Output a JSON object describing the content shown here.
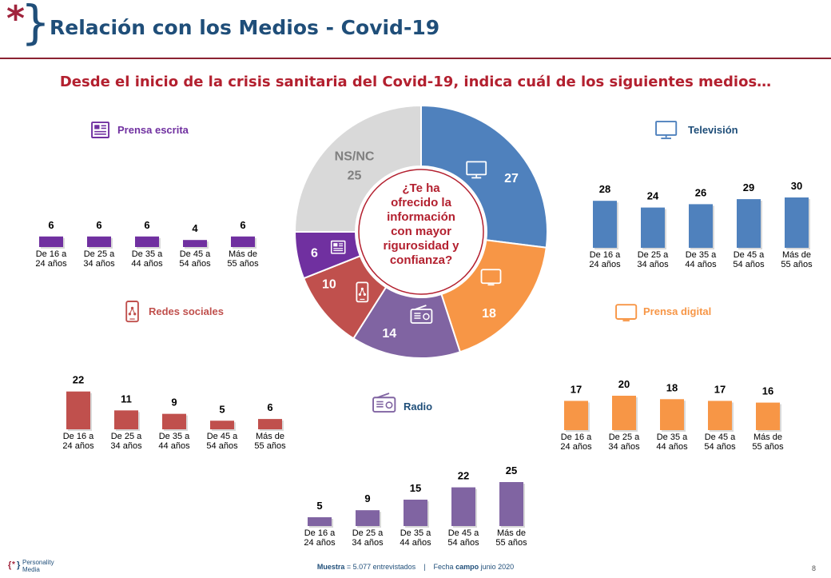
{
  "header": {
    "title": "Relación con los Medios - Covid-19",
    "question": "Desde el inicio de la crisis sanitaria del Covid-19, indica cuál de los siguientes medios…",
    "logo_star": "*",
    "logo_brace": "}"
  },
  "colors": {
    "television": "#4f81bd",
    "prensa_digital": "#f79646",
    "radio": "#8064a2",
    "redes_sociales": "#c0504d",
    "prensa_escrita": "#7030a0",
    "nsnc": "#d9d9d9",
    "title": "#1f4e79",
    "question": "#b3202f"
  },
  "chart_data": [
    {
      "type": "pie",
      "donut": true,
      "center_text": "¿Te ha ofrecido la información con mayor rigurosidad y confianza?",
      "slices": [
        {
          "label": "Televisión",
          "value": 27,
          "icon": "tv-icon"
        },
        {
          "label": "Prensa digital",
          "value": 18,
          "icon": "monitor-icon"
        },
        {
          "label": "Radio",
          "value": 14,
          "icon": "radio-icon"
        },
        {
          "label": "Redes sociales",
          "value": 10,
          "icon": "smartphone-icon"
        },
        {
          "label": "Prensa escrita",
          "value": 6,
          "icon": "newspaper-icon"
        },
        {
          "label": "NS/NC",
          "value": 25,
          "icon": ""
        }
      ]
    },
    {
      "type": "bar",
      "title": "Prensa escrita",
      "icon": "newspaper-icon",
      "categories": [
        "De 16 a\n24 años",
        "De 25 a\n34 años",
        "De 35 a\n44 años",
        "De 45 a\n54 años",
        "Más de\n55 años"
      ],
      "values": [
        6,
        6,
        6,
        4,
        6
      ]
    },
    {
      "type": "bar",
      "title": "Televisión",
      "icon": "tv-icon",
      "categories": [
        "De 16 a\n24 años",
        "De 25 a\n34 años",
        "De 35 a\n44 años",
        "De 45 a\n54 años",
        "Más de\n55 años"
      ],
      "values": [
        28,
        24,
        26,
        29,
        30
      ]
    },
    {
      "type": "bar",
      "title": "Redes sociales",
      "icon": "smartphone-icon",
      "categories": [
        "De 16 a\n24 años",
        "De 25 a\n34 años",
        "De 35 a\n44 años",
        "De 45 a\n54 años",
        "Más de\n55 años"
      ],
      "values": [
        22,
        11,
        9,
        5,
        6
      ]
    },
    {
      "type": "bar",
      "title": "Prensa digital",
      "icon": "monitor-icon",
      "categories": [
        "De 16 a\n24 años",
        "De 25 a\n34 años",
        "De 35 a\n44 años",
        "De 45 a\n54 años",
        "Más de\n55 años"
      ],
      "values": [
        17,
        20,
        18,
        17,
        16
      ]
    },
    {
      "type": "bar",
      "title": "Radio",
      "icon": "radio-icon",
      "categories": [
        "De 16 a\n24 años",
        "De 25 a\n34 años",
        "De 35 a\n44 años",
        "De 45 a\n54 años",
        "Más de\n55 años"
      ],
      "values": [
        5,
        9,
        15,
        22,
        25
      ]
    }
  ],
  "footer": {
    "logo_text_1": "Personality",
    "logo_text_2": "Media",
    "muestra_label": "Muestra",
    "muestra_value": "= 5.077 entrevistados",
    "separator": "|",
    "fecha_label": "Fecha",
    "campo_label": "campo",
    "fecha_value": "junio 2020",
    "page_number": "8"
  }
}
